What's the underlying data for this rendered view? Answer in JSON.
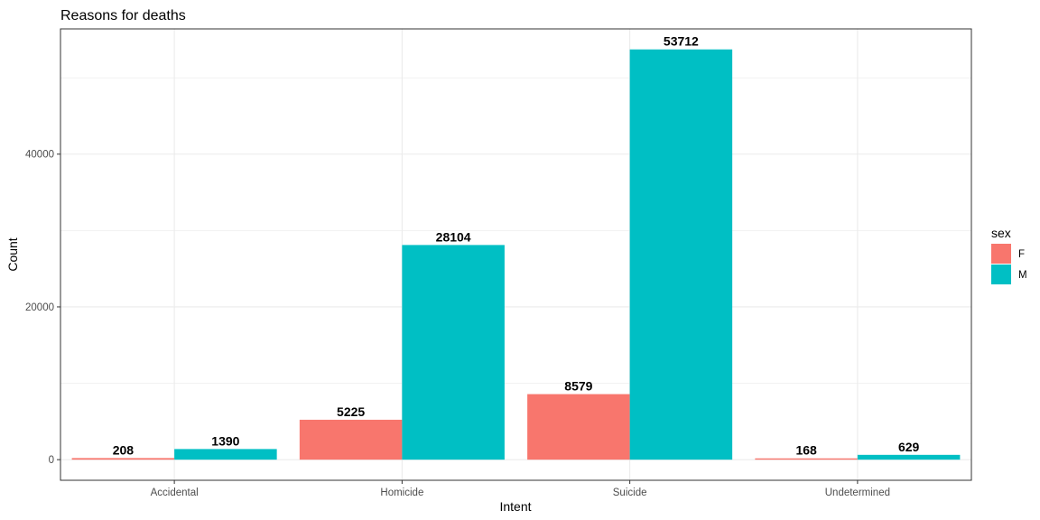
{
  "chart_data": {
    "type": "bar",
    "title": "Reasons for deaths",
    "xlabel": "Intent",
    "ylabel": "Count",
    "categories": [
      "Accidental",
      "Homicide",
      "Suicide",
      "Undetermined"
    ],
    "series": [
      {
        "name": "F",
        "color": "#f8766d",
        "values": [
          208,
          5225,
          8579,
          168
        ]
      },
      {
        "name": "M",
        "color": "#00bfc4",
        "values": [
          1390,
          28104,
          53712,
          629
        ]
      }
    ],
    "yticks": [
      0,
      20000,
      40000
    ],
    "ylim": [
      -2700,
      56400
    ],
    "grid": true,
    "legend": {
      "title": "sex",
      "position": "right"
    }
  }
}
